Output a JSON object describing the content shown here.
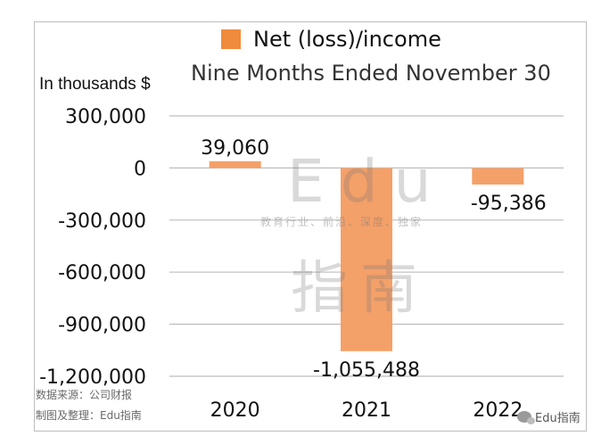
{
  "chart_data": {
    "type": "bar",
    "title": "",
    "subtitle": "Nine Months Ended November 30",
    "ylabel": "In thousands $",
    "xlabel": "",
    "categories": [
      "2020",
      "2021",
      "2022"
    ],
    "series": [
      {
        "name": "Net (loss)/income",
        "values": [
          39060,
          -1055488,
          -95386
        ]
      }
    ],
    "data_labels": [
      "39,060",
      "-1,055,488",
      "-95,386"
    ],
    "ylim": [
      -1200000,
      300000
    ],
    "yticks": [
      300000,
      0,
      -300000,
      -600000,
      -900000,
      -1200000
    ],
    "ytick_labels": [
      "300,000",
      "0",
      "-300,000",
      "-600,000",
      "-900,000",
      "-1,200,000"
    ],
    "grid": true,
    "legend_position": "top-center",
    "bar_color": "#f4a069",
    "legend_color": "#f08a3c",
    "grid_color": "#bdbdbd"
  },
  "source_note": {
    "line1": "数据来源：公司财报",
    "line2": "制图及整理：Edu指南"
  },
  "watermark": {
    "text": "Edu",
    "tagline": "教育行业、前沿、深度、独家",
    "chinese": "指南"
  },
  "brand_badge": {
    "icon": "wechat-icon",
    "label": "Edu指南"
  }
}
